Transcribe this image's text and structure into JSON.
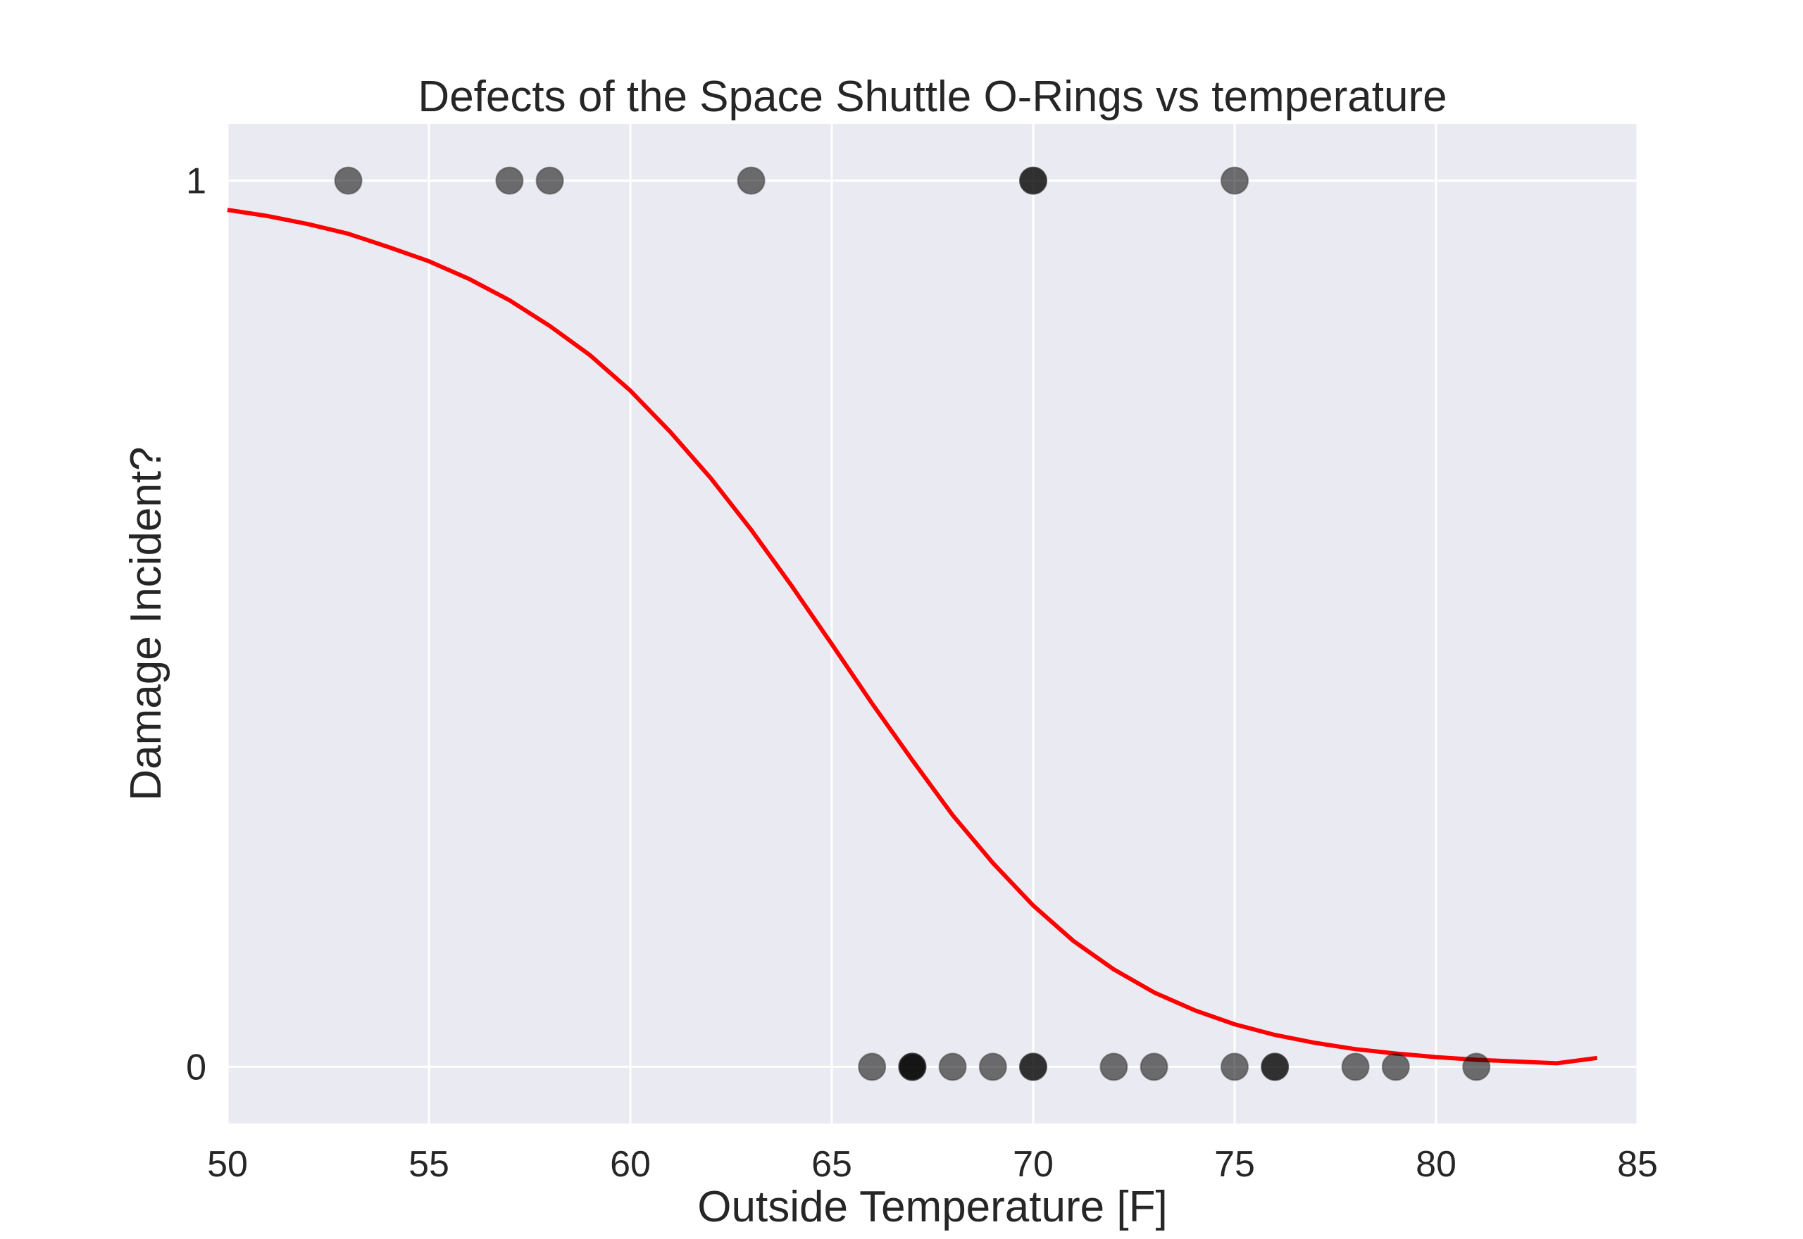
{
  "chart_data": {
    "type": "scatter",
    "title": "Defects of the Space Shuttle O-Rings vs temperature",
    "xlabel": "Outside Temperature [F]",
    "ylabel": "Damage Incident?",
    "xlim": [
      50,
      85
    ],
    "ylim": [
      -0.064,
      1.064
    ],
    "x_ticks": [
      50,
      55,
      60,
      65,
      70,
      75,
      80,
      85
    ],
    "x_tick_labels": [
      "50",
      "55",
      "60",
      "65",
      "70",
      "75",
      "80",
      "85"
    ],
    "y_ticks": [
      0,
      1
    ],
    "y_tick_labels": [
      "0",
      "1"
    ],
    "grid": true,
    "background_color": "#eaeaf2",
    "grid_color": "#ffffff",
    "point_color": "#000000",
    "point_alpha": 0.55,
    "curve_color": "#ff0000",
    "series": [
      {
        "type": "scatter",
        "points": [
          {
            "x": 53,
            "y": 1
          },
          {
            "x": 57,
            "y": 1
          },
          {
            "x": 58,
            "y": 1
          },
          {
            "x": 63,
            "y": 1
          },
          {
            "x": 70,
            "y": 1
          },
          {
            "x": 70,
            "y": 1
          },
          {
            "x": 75,
            "y": 1
          },
          {
            "x": 66,
            "y": 0
          },
          {
            "x": 67,
            "y": 0
          },
          {
            "x": 67,
            "y": 0
          },
          {
            "x": 67,
            "y": 0
          },
          {
            "x": 68,
            "y": 0
          },
          {
            "x": 69,
            "y": 0
          },
          {
            "x": 70,
            "y": 0
          },
          {
            "x": 70,
            "y": 0
          },
          {
            "x": 72,
            "y": 0
          },
          {
            "x": 73,
            "y": 0
          },
          {
            "x": 75,
            "y": 0
          },
          {
            "x": 76,
            "y": 0
          },
          {
            "x": 76,
            "y": 0
          },
          {
            "x": 78,
            "y": 0
          },
          {
            "x": 79,
            "y": 0
          },
          {
            "x": 81,
            "y": 0
          }
        ]
      },
      {
        "type": "line",
        "x": [
          50,
          51,
          52,
          53,
          54,
          55,
          56,
          57,
          58,
          59,
          60,
          61,
          62,
          63,
          64,
          65,
          66,
          67,
          68,
          69,
          70,
          71,
          72,
          73,
          74,
          75,
          76,
          77,
          78,
          79,
          80,
          81,
          82,
          83,
          84
        ],
        "y": [
          0.967,
          0.96,
          0.951,
          0.94,
          0.925,
          0.909,
          0.889,
          0.865,
          0.836,
          0.803,
          0.763,
          0.716,
          0.664,
          0.606,
          0.543,
          0.477,
          0.41,
          0.346,
          0.284,
          0.23,
          0.182,
          0.142,
          0.11,
          0.084,
          0.064,
          0.048,
          0.036,
          0.027,
          0.02,
          0.015,
          0.011,
          0.008,
          0.006,
          0.004,
          0.01
        ]
      }
    ]
  }
}
